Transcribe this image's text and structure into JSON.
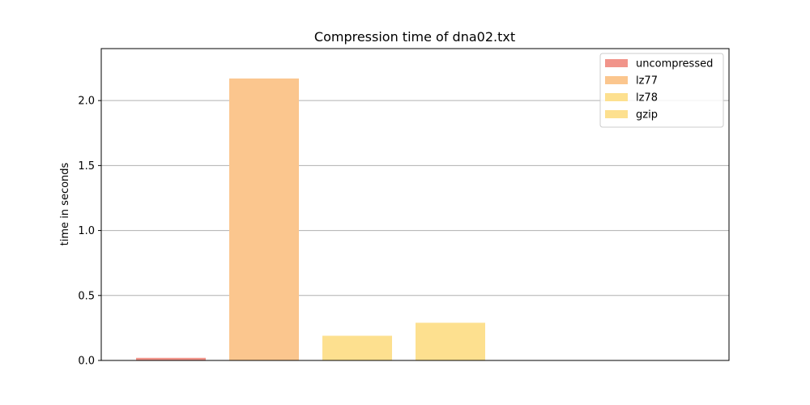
{
  "chart_data": {
    "type": "bar",
    "title": "Compression time of dna02.txt",
    "xlabel": "",
    "ylabel": "time in seconds",
    "ylim": [
      0,
      2.4
    ],
    "yticks": [
      "0.0",
      "0.5",
      "1.0",
      "1.5",
      "2.0"
    ],
    "grid": "y",
    "legend_position": "top-right",
    "series": [
      {
        "name": "uncompressed",
        "value": 0.02,
        "color": "#f1948a"
      },
      {
        "name": "lz77",
        "value": 2.17,
        "color": "#fbc68e"
      },
      {
        "name": "lz78",
        "value": 0.19,
        "color": "#fde08f"
      },
      {
        "name": "gzip",
        "value": 0.29,
        "color": "#fde08f"
      }
    ]
  }
}
